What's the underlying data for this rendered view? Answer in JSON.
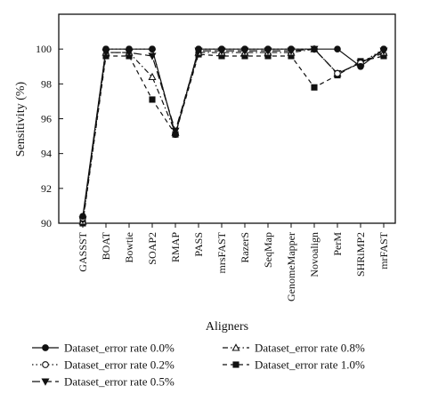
{
  "chart_data": {
    "type": "line",
    "title": "",
    "xlabel": "Aligners",
    "ylabel": "Sensitivity (%)",
    "ylim": [
      90,
      102
    ],
    "yticks": [
      90,
      92,
      94,
      96,
      98,
      100
    ],
    "grid": false,
    "legend_position": "bottom",
    "categories": [
      "GASSST",
      "BOAT",
      "Bowtie",
      "SOAP2",
      "RMAP",
      "PASS",
      "mrsFAST",
      "RazerS",
      "SeqMap",
      "GenomeMapper",
      "Novoalign",
      "PerM",
      "SHRiMP2",
      "mrFAST"
    ],
    "series": [
      {
        "name": "Dataset_error rate 0.0%",
        "marker": "filled-circle",
        "dash": "solid",
        "values": [
          90.4,
          100.0,
          100.0,
          100.0,
          95.1,
          100.0,
          100.0,
          100.0,
          100.0,
          100.0,
          100.0,
          100.0,
          99.0,
          100.0
        ]
      },
      {
        "name": "Dataset_error rate 0.2%",
        "marker": "open-circle",
        "dash": "dotted",
        "values": [
          90.3,
          100.0,
          100.0,
          100.0,
          95.1,
          100.0,
          100.0,
          100.0,
          100.0,
          100.0,
          100.0,
          98.6,
          99.2,
          100.0
        ]
      },
      {
        "name": "Dataset_error rate 0.5%",
        "marker": "filled-triangle-down",
        "dash": "longdash",
        "values": [
          90.2,
          99.8,
          99.8,
          99.6,
          95.3,
          99.9,
          99.9,
          99.9,
          99.9,
          99.9,
          100.0,
          98.6,
          99.2,
          99.9
        ]
      },
      {
        "name": "Dataset_error rate 0.8%",
        "marker": "open-triangle-up",
        "dash": "dash-dot",
        "values": [
          90.1,
          99.8,
          99.8,
          98.4,
          95.2,
          99.8,
          99.8,
          99.8,
          99.8,
          99.8,
          100.0,
          98.6,
          99.2,
          99.8
        ]
      },
      {
        "name": "Dataset_error rate 1.0%",
        "marker": "filled-square",
        "dash": "dashed",
        "values": [
          90.0,
          99.6,
          99.6,
          97.1,
          95.1,
          99.7,
          99.6,
          99.6,
          99.6,
          99.6,
          97.8,
          98.5,
          99.3,
          99.6
        ]
      }
    ]
  }
}
